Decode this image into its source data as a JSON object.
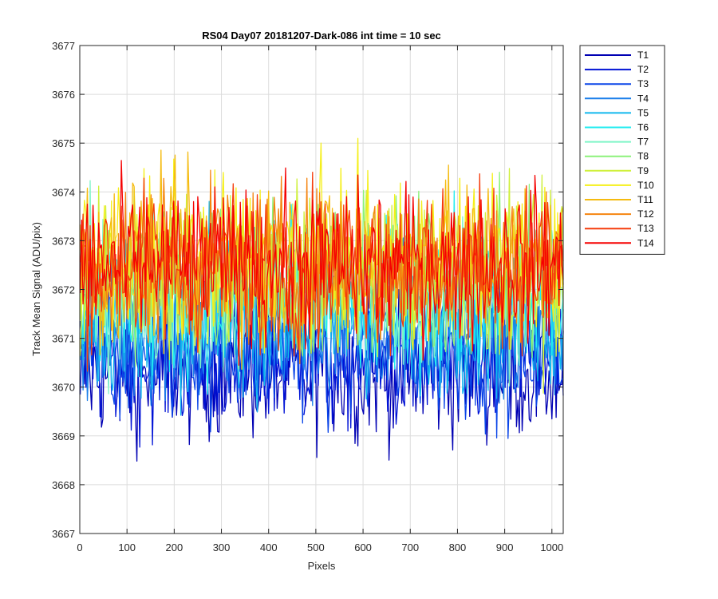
{
  "chart_data": {
    "type": "line",
    "title": "RS04 Day07 20181207-Dark-086 int time = 10 sec",
    "xlabel": "Pixels",
    "ylabel": "Track Mean Signal (ADU/pix)",
    "xlim": [
      0,
      1024
    ],
    "ylim": [
      3667,
      3677
    ],
    "xticks": [
      0,
      100,
      200,
      300,
      400,
      500,
      600,
      700,
      800,
      900,
      1000
    ],
    "yticks": [
      3667,
      3668,
      3669,
      3670,
      3671,
      3672,
      3673,
      3674,
      3675,
      3676,
      3677
    ],
    "grid": true,
    "legend_position": "outside-top-right",
    "x_step": 3,
    "series": [
      {
        "name": "T1",
        "color": "#0000b3",
        "mean": 3670.3,
        "spread": 0.7
      },
      {
        "name": "T2",
        "color": "#0012d6",
        "mean": 3670.5,
        "spread": 0.7
      },
      {
        "name": "T3",
        "color": "#0a45e8",
        "mean": 3670.8,
        "spread": 0.75
      },
      {
        "name": "T4",
        "color": "#1a7fea",
        "mean": 3671.1,
        "spread": 0.75
      },
      {
        "name": "T5",
        "color": "#10b8ee",
        "mean": 3671.5,
        "spread": 0.8
      },
      {
        "name": "T6",
        "color": "#22ecf0",
        "mean": 3671.8,
        "spread": 0.8
      },
      {
        "name": "T7",
        "color": "#7ff5c8",
        "mean": 3672.0,
        "spread": 0.8
      },
      {
        "name": "T8",
        "color": "#8cf27a",
        "mean": 3672.2,
        "spread": 0.85
      },
      {
        "name": "T9",
        "color": "#cff03a",
        "mean": 3672.4,
        "spread": 0.85
      },
      {
        "name": "T10",
        "color": "#f5ef1a",
        "mean": 3672.6,
        "spread": 0.85
      },
      {
        "name": "T11",
        "color": "#f5bb10",
        "mean": 3672.6,
        "spread": 0.85
      },
      {
        "name": "T12",
        "color": "#f58510",
        "mean": 3672.5,
        "spread": 0.8
      },
      {
        "name": "T13",
        "color": "#f53c0c",
        "mean": 3672.5,
        "spread": 0.8
      },
      {
        "name": "T14",
        "color": "#f50000",
        "mean": 3672.5,
        "spread": 0.8
      }
    ]
  }
}
